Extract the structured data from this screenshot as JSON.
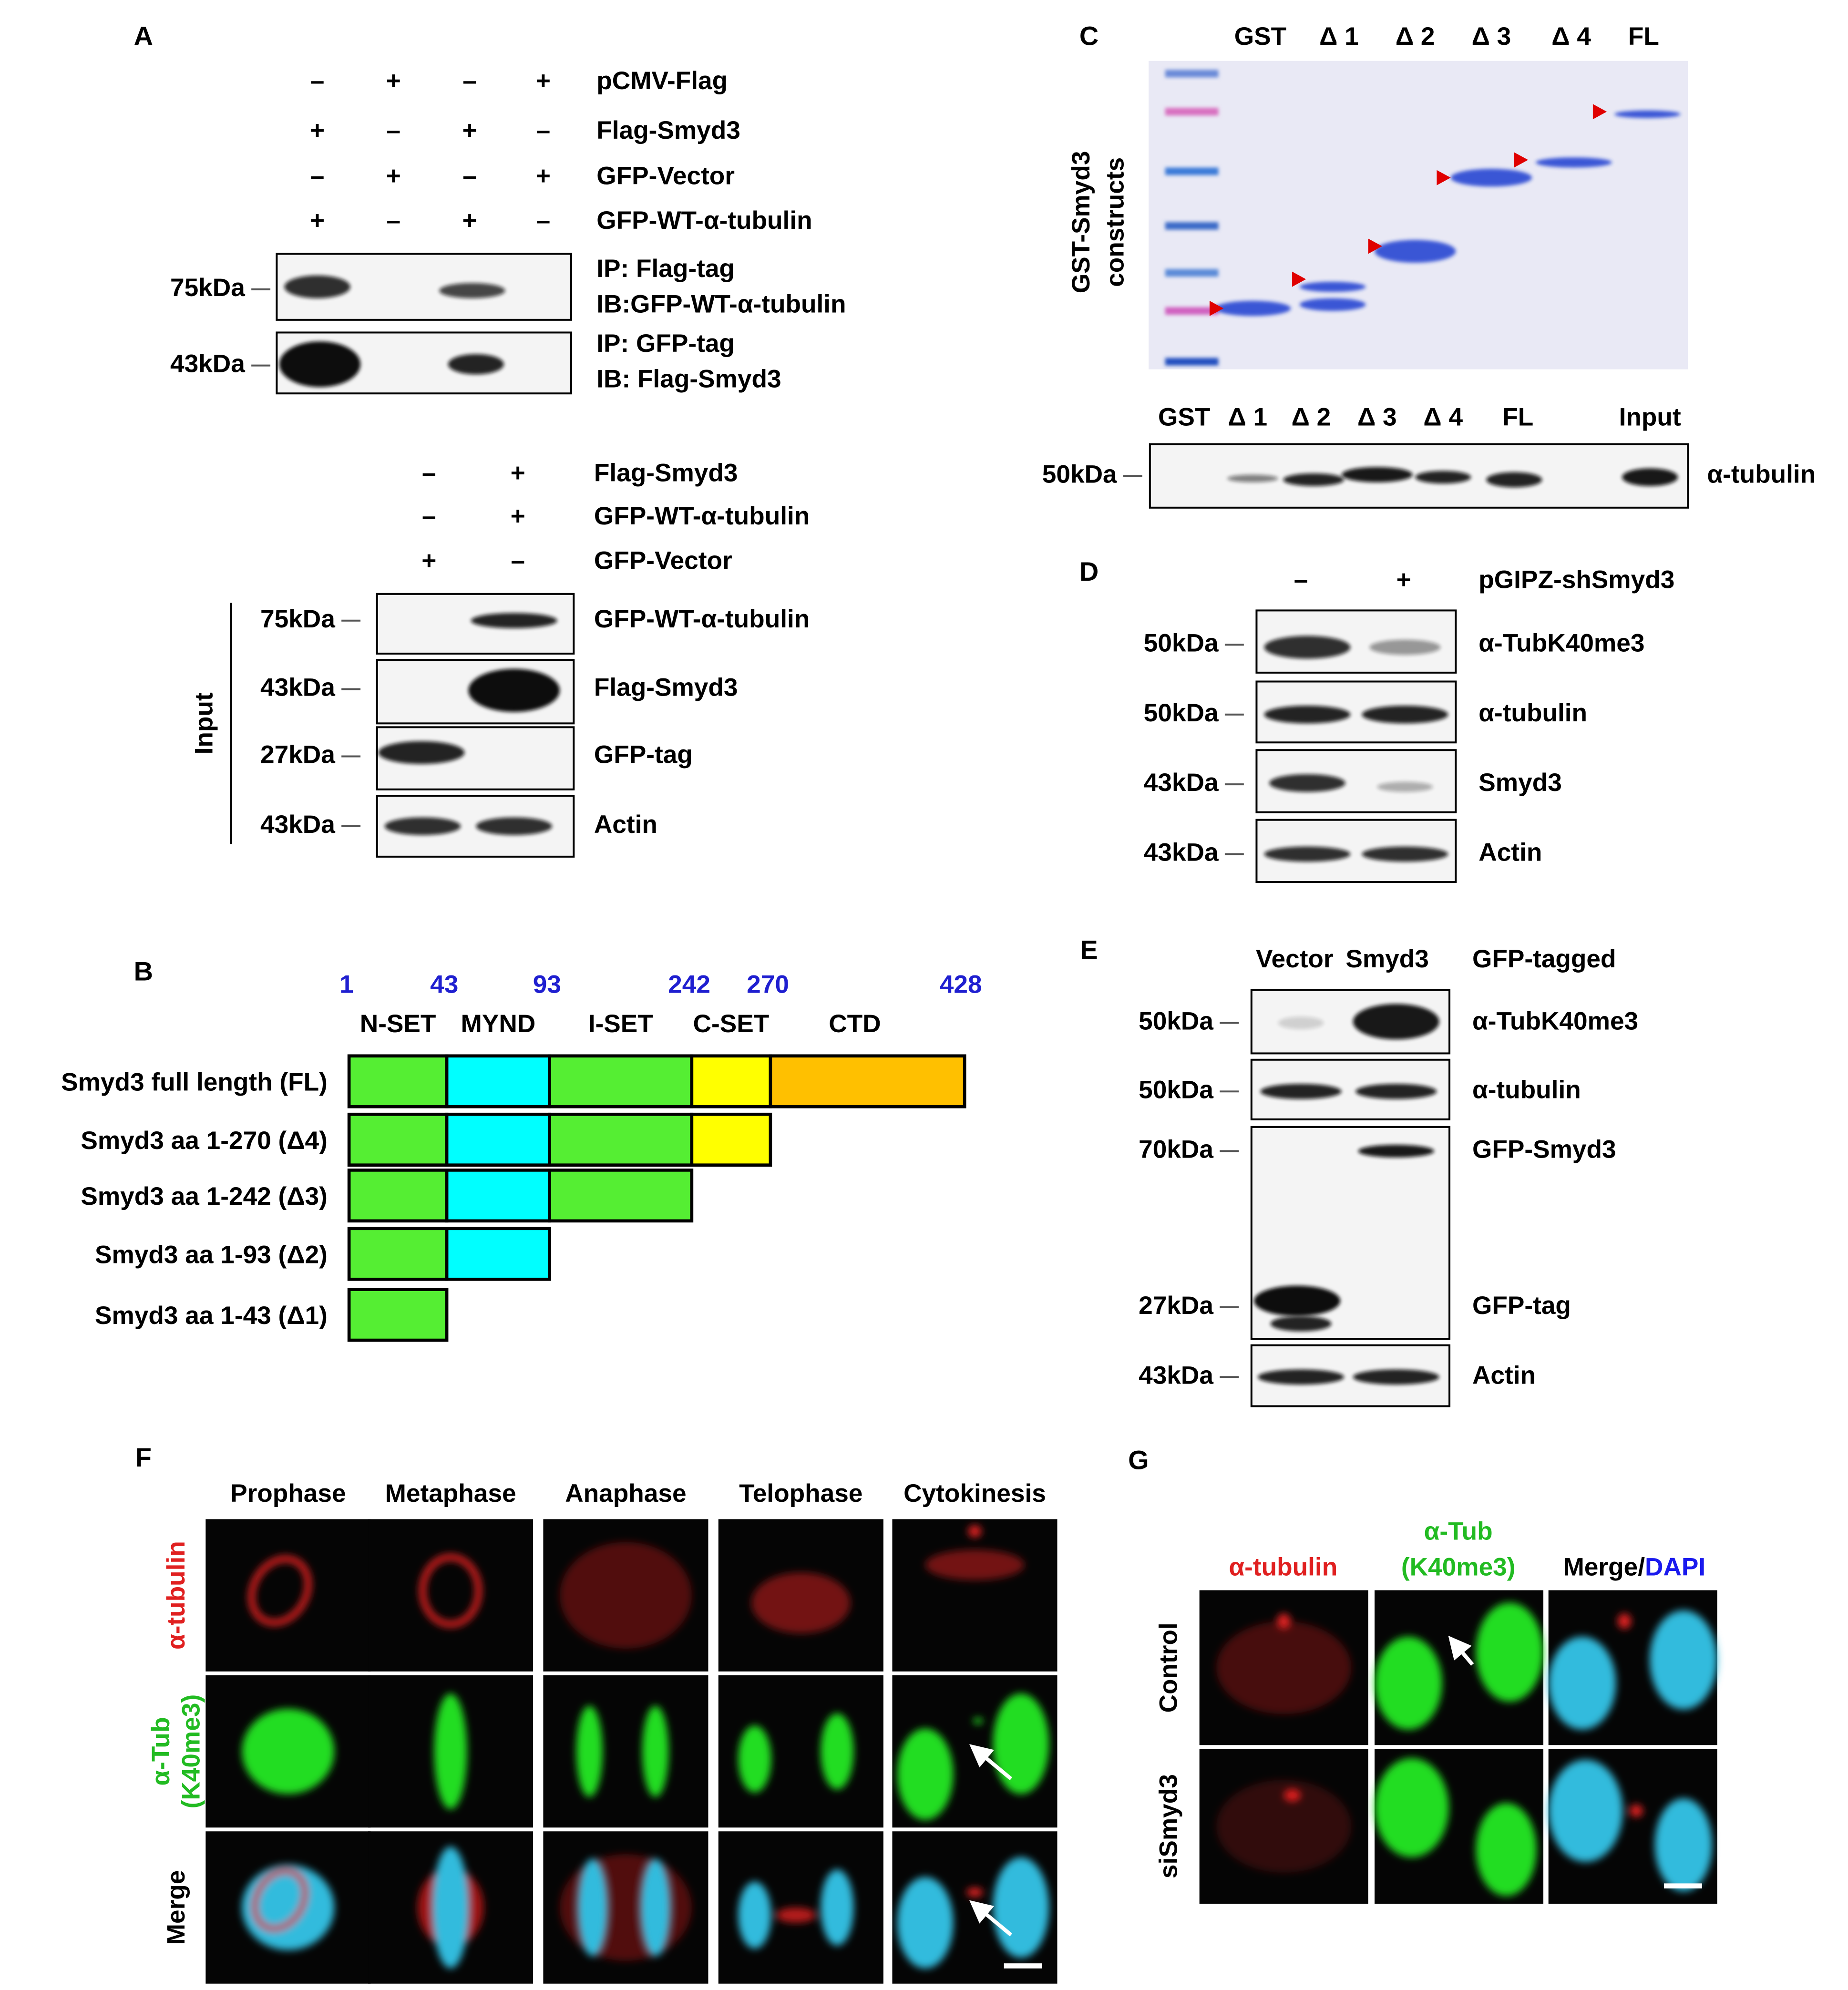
{
  "panel_a": {
    "label": "A",
    "conditions": [
      {
        "name": "pCMV-Flag",
        "signs": [
          "–",
          "+",
          "–",
          "+"
        ]
      },
      {
        "name": "Flag-Smyd3",
        "signs": [
          "+",
          "–",
          "+",
          "–"
        ]
      },
      {
        "name": "GFP-Vector",
        "signs": [
          "–",
          "+",
          "–",
          "+"
        ]
      },
      {
        "name": "GFP-WT-α-tubulin",
        "signs": [
          "+",
          "–",
          "+",
          "–"
        ]
      }
    ],
    "blots": [
      {
        "marker": "75kDa",
        "lines": [
          "IP: Flag-tag",
          "IB:GFP-WT-α-tubulin"
        ]
      },
      {
        "marker": "43kDa",
        "lines": [
          "IP: GFP-tag",
          "IB: Flag-Smyd3"
        ]
      }
    ],
    "input_conditions": [
      {
        "name": "Flag-Smyd3",
        "signs": [
          "–",
          "+"
        ]
      },
      {
        "name": "GFP-WT-α-tubulin",
        "signs": [
          "–",
          "+"
        ]
      },
      {
        "name": "GFP-Vector",
        "signs": [
          "+",
          "–"
        ]
      }
    ],
    "input_label": "Input",
    "input_blots": [
      {
        "marker": "75kDa",
        "name": "GFP-WT-α-tubulin"
      },
      {
        "marker": "43kDa",
        "name": "Flag-Smyd3"
      },
      {
        "marker": "27kDa",
        "name": "GFP-tag"
      },
      {
        "marker": "43kDa",
        "name": "Actin"
      }
    ]
  },
  "panel_b": {
    "label": "B",
    "positions": [
      1,
      43,
      93,
      242,
      270,
      428
    ],
    "domains": [
      {
        "name": "N-SET",
        "color": "#55ee33"
      },
      {
        "name": "MYND",
        "color": "#00ffff"
      },
      {
        "name": "I-SET",
        "color": "#55ee33"
      },
      {
        "name": "C-SET",
        "color": "#ffff00"
      },
      {
        "name": "CTD",
        "color": "#ffc000"
      }
    ],
    "constructs": [
      "Smyd3 full length (FL)",
      "Smyd3 aa 1-270 (Δ4)",
      "Smyd3 aa 1-242 (Δ3)",
      "Smyd3 aa 1-93 (Δ2)",
      "Smyd3 aa 1-43 (Δ1)"
    ]
  },
  "panel_c": {
    "label": "C",
    "lanes": [
      "GST",
      "Δ 1",
      "Δ 2",
      "Δ 3",
      "Δ 4",
      "FL"
    ],
    "side_label": [
      "GST-Smyd3",
      "constructs"
    ],
    "pulldown_lanes": [
      "GST",
      "Δ 1",
      "Δ 2",
      "Δ 3",
      "Δ 4",
      "FL",
      "Input"
    ],
    "marker": "50kDa",
    "blot": "α-tubulin"
  },
  "panel_d": {
    "label": "D",
    "signs": [
      "–",
      "+"
    ],
    "condition": "pGIPZ-shSmyd3",
    "blots": [
      {
        "marker": "50kDa",
        "name": "α-TubK40me3"
      },
      {
        "marker": "50kDa",
        "name": "α-tubulin"
      },
      {
        "marker": "43kDa",
        "name": "Smyd3"
      },
      {
        "marker": "43kDa",
        "name": "Actin"
      }
    ]
  },
  "panel_e": {
    "label": "E",
    "lanes": [
      "Vector",
      "Smyd3"
    ],
    "header": "GFP-tagged",
    "blots": [
      {
        "marker": "50kDa",
        "name": "α-TubK40me3"
      },
      {
        "marker": "50kDa",
        "name": "α-tubulin"
      },
      {
        "marker": "70kDa",
        "name": "GFP-Smyd3"
      },
      {
        "marker": "27kDa",
        "name": "GFP-tag"
      },
      {
        "marker": "43kDa",
        "name": "Actin"
      }
    ]
  },
  "panel_f": {
    "label": "F",
    "columns": [
      "Prophase",
      "Metaphase",
      "Anaphase",
      "Telophase",
      "Cytokinesis"
    ],
    "rows": [
      [
        "α-tubulin"
      ],
      [
        "α-Tub",
        "(K40me3)"
      ],
      [
        "Merge"
      ]
    ]
  },
  "panel_g": {
    "label": "G",
    "columns": [
      [
        "α-tubulin"
      ],
      [
        "α-Tub",
        "(K40me3)"
      ],
      [
        "Merge/",
        "DAPI"
      ]
    ],
    "rows": [
      "Control",
      "siSmyd3"
    ]
  }
}
